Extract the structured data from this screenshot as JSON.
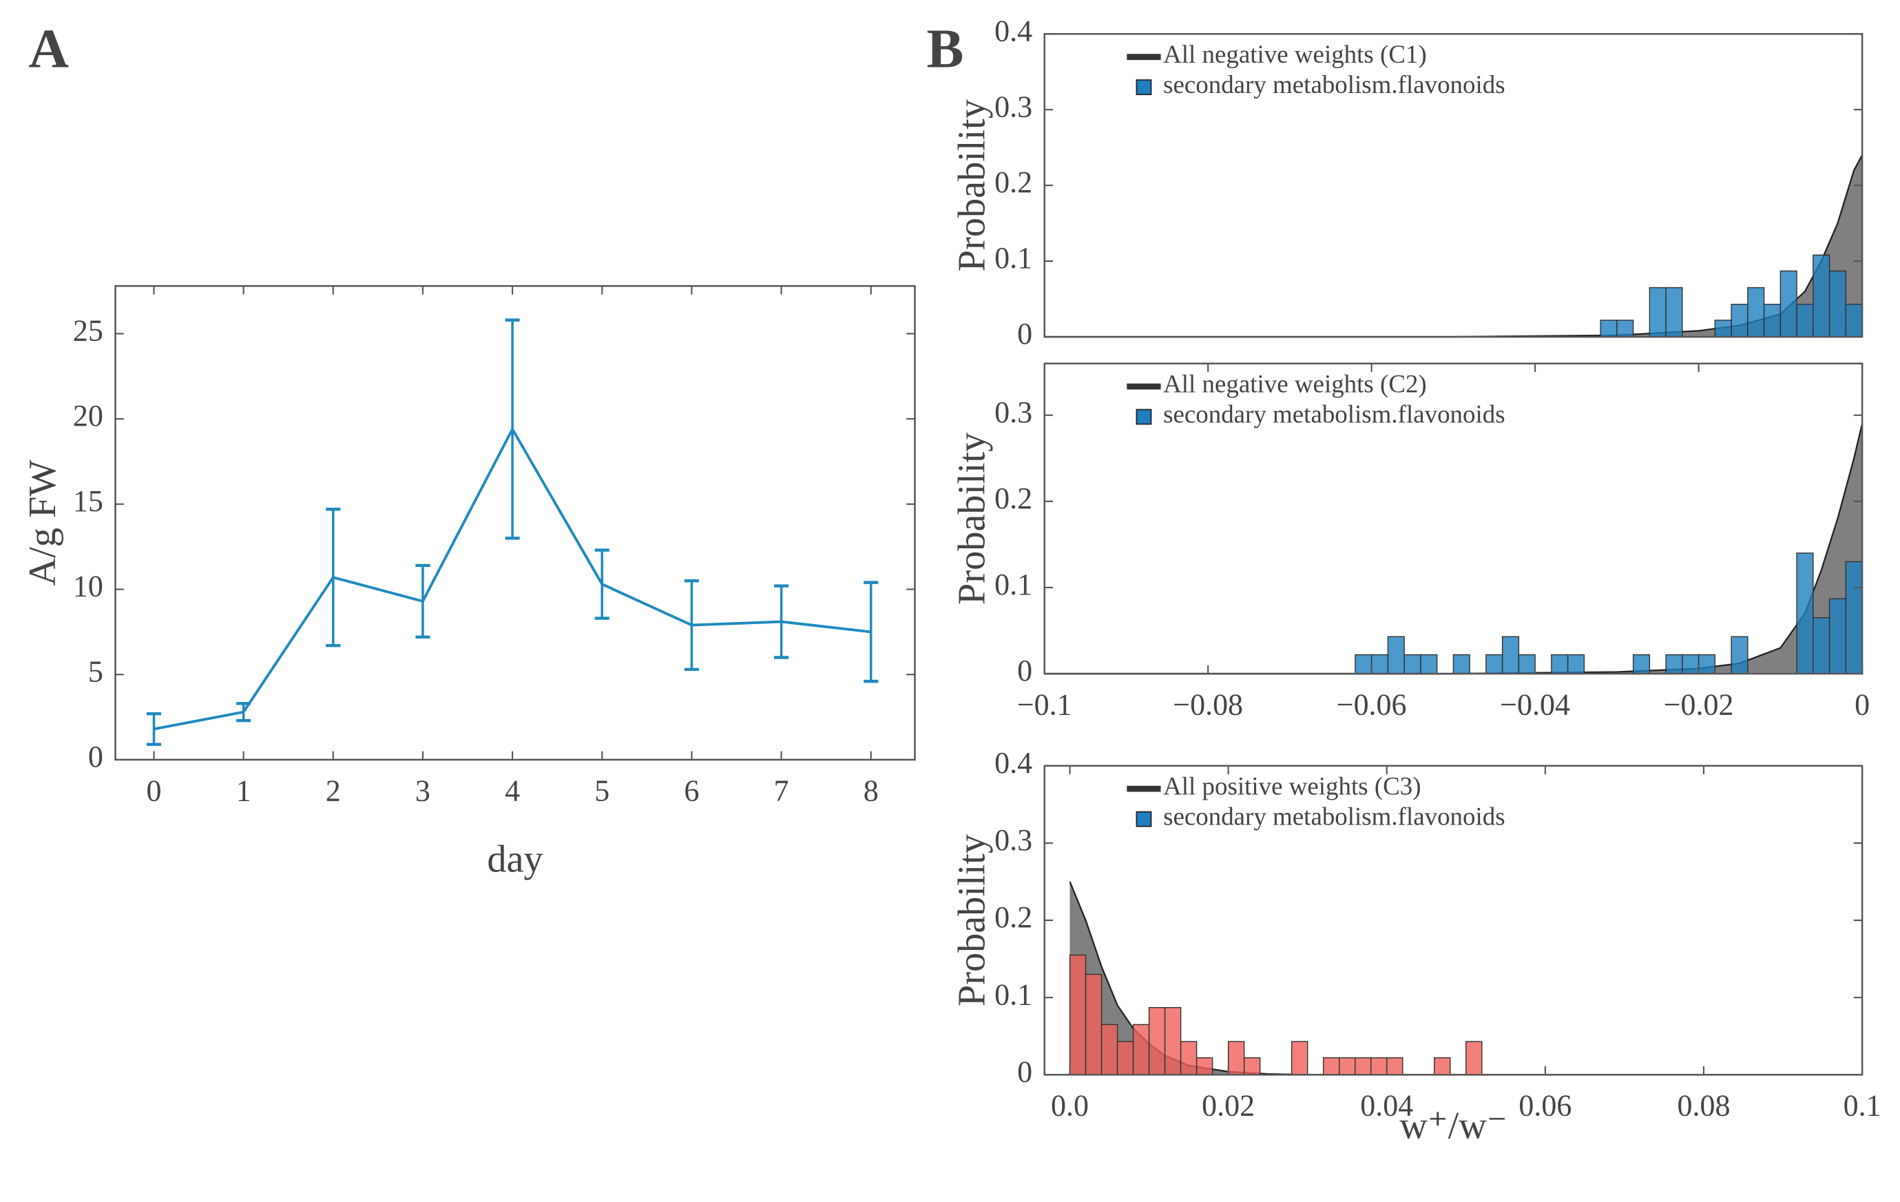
{
  "chart_data": [
    {
      "type": "line",
      "panel_label": "A",
      "xlabel": "day",
      "ylabel": "A/g FW",
      "color": "#1f8ac0",
      "x": [
        0,
        1,
        2,
        3,
        4,
        5,
        6,
        7,
        8
      ],
      "values": [
        1.8,
        2.8,
        10.7,
        9.3,
        19.4,
        10.3,
        7.9,
        8.1,
        7.5
      ],
      "errors": [
        0.9,
        0.5,
        4.0,
        2.1,
        6.4,
        2.0,
        2.6,
        2.1,
        2.9
      ],
      "xlim": [
        -0.43,
        8.49
      ],
      "xticks": [
        0,
        1,
        2,
        3,
        4,
        5,
        6,
        7,
        8
      ],
      "ylim": [
        0,
        27.8
      ],
      "yticks": [
        0,
        5,
        10,
        15,
        20,
        25
      ]
    },
    {
      "type": "histogram",
      "panel_label": "B",
      "ylabel": "Probability",
      "legend": "upper left",
      "xlim": [
        -0.1,
        0
      ],
      "ylim": [
        0,
        0.4
      ],
      "yticks": [
        0,
        0.1,
        0.2,
        0.3,
        0.4
      ],
      "series": [
        {
          "name": "All negative weights (C1)",
          "kind": "area",
          "color": "#808080",
          "x": [
            -0.1,
            -0.05,
            -0.03,
            -0.02,
            -0.015,
            -0.01,
            -0.007,
            -0.005,
            -0.003,
            -0.001,
            0
          ],
          "values": [
            0,
            0,
            0.002,
            0.008,
            0.015,
            0.03,
            0.06,
            0.1,
            0.15,
            0.22,
            0.24
          ]
        },
        {
          "name": "secondary metabolism.flavonoids",
          "kind": "bars",
          "color": "#1f7fbf",
          "bins": [
            -0.032,
            -0.03,
            -0.028,
            -0.026,
            -0.024,
            -0.022,
            -0.02,
            -0.018,
            -0.016,
            -0.014,
            -0.012,
            -0.01,
            -0.008,
            -0.006,
            -0.004,
            -0.002,
            0
          ],
          "values": [
            0.022,
            0.022,
            0,
            0.065,
            0.065,
            0,
            0,
            0.022,
            0.043,
            0.065,
            0.043,
            0.087,
            0.043,
            0.108,
            0.087,
            0.043
          ]
        }
      ]
    },
    {
      "type": "histogram",
      "ylabel": "Probability",
      "legend": "upper left",
      "xlim": [
        -0.1,
        0
      ],
      "ylim": [
        0,
        0.36
      ],
      "yticks": [
        0,
        0.1,
        0.2,
        0.3
      ],
      "xticks": [
        {
          "value": -0.1,
          "label": "−0.1"
        },
        {
          "value": -0.08,
          "label": "−0.08"
        },
        {
          "value": -0.06,
          "label": "−0.06"
        },
        {
          "value": -0.04,
          "label": "−0.04"
        },
        {
          "value": -0.02,
          "label": "−0.02"
        },
        0
      ],
      "series": [
        {
          "name": "All negative weights (C2)",
          "kind": "area",
          "color": "#808080",
          "x": [
            -0.1,
            -0.05,
            -0.03,
            -0.02,
            -0.015,
            -0.01,
            -0.007,
            -0.005,
            -0.003,
            -0.001,
            0
          ],
          "values": [
            0,
            0,
            0.002,
            0.006,
            0.012,
            0.03,
            0.07,
            0.12,
            0.18,
            0.25,
            0.29
          ]
        },
        {
          "name": "secondary metabolism.flavonoids",
          "kind": "bars",
          "color": "#1f7fbf",
          "bins": [
            -0.062,
            -0.06,
            -0.058,
            -0.056,
            -0.054,
            -0.052,
            -0.05,
            -0.048,
            -0.046,
            -0.044,
            -0.042,
            -0.04,
            -0.038,
            -0.036,
            -0.034,
            -0.032,
            -0.03,
            -0.028,
            -0.026,
            -0.024,
            -0.022,
            -0.02,
            -0.018,
            -0.016,
            -0.014,
            -0.012,
            -0.01,
            -0.008,
            -0.006,
            -0.004,
            -0.002,
            0
          ],
          "values": [
            0.022,
            0.022,
            0.043,
            0.022,
            0.022,
            0,
            0.022,
            0,
            0.022,
            0.043,
            0.022,
            0,
            0.022,
            0.022,
            0,
            0,
            0,
            0.022,
            0,
            0.022,
            0.022,
            0.022,
            0,
            0.043,
            0,
            0,
            0,
            0.14,
            0.065,
            0.087,
            0.13
          ]
        }
      ]
    },
    {
      "type": "histogram",
      "ylabel": "Probability",
      "xlabel": "w⁺/w⁻",
      "legend": "upper left",
      "xlim": [
        -0.0032,
        0.1
      ],
      "ylim": [
        0,
        0.4
      ],
      "yticks": [
        0,
        0.1,
        0.2,
        0.3,
        0.4
      ],
      "xticks": [
        {
          "value": 0,
          "label": "0.0"
        },
        0.02,
        0.04,
        0.06,
        0.08,
        0.1
      ],
      "series": [
        {
          "name": "All positive weights (C3)",
          "kind": "area",
          "color": "#808080",
          "x": [
            0,
            0.002,
            0.004,
            0.006,
            0.008,
            0.01,
            0.012,
            0.015,
            0.02,
            0.025,
            0.03,
            0.1
          ],
          "values": [
            0.25,
            0.2,
            0.14,
            0.09,
            0.06,
            0.04,
            0.025,
            0.012,
            0.004,
            0.001,
            0,
            0
          ]
        },
        {
          "name": "secondary metabolism.flavonoids",
          "kind": "bars",
          "color": "#f0605a",
          "legend_color": "#1f7fbf",
          "bins": [
            0,
            0.002,
            0.004,
            0.006,
            0.008,
            0.01,
            0.012,
            0.014,
            0.016,
            0.018,
            0.02,
            0.022,
            0.024,
            0.026,
            0.028,
            0.03,
            0.032,
            0.034,
            0.036,
            0.038,
            0.04,
            0.042,
            0.044,
            0.046,
            0.048,
            0.05,
            0.052
          ],
          "values": [
            0.155,
            0.13,
            0.065,
            0.043,
            0.065,
            0.087,
            0.087,
            0.043,
            0.022,
            0,
            0.043,
            0.022,
            0,
            0,
            0.043,
            0,
            0.022,
            0.022,
            0.022,
            0.022,
            0.022,
            0,
            0,
            0.022,
            0,
            0.043
          ]
        }
      ]
    }
  ]
}
